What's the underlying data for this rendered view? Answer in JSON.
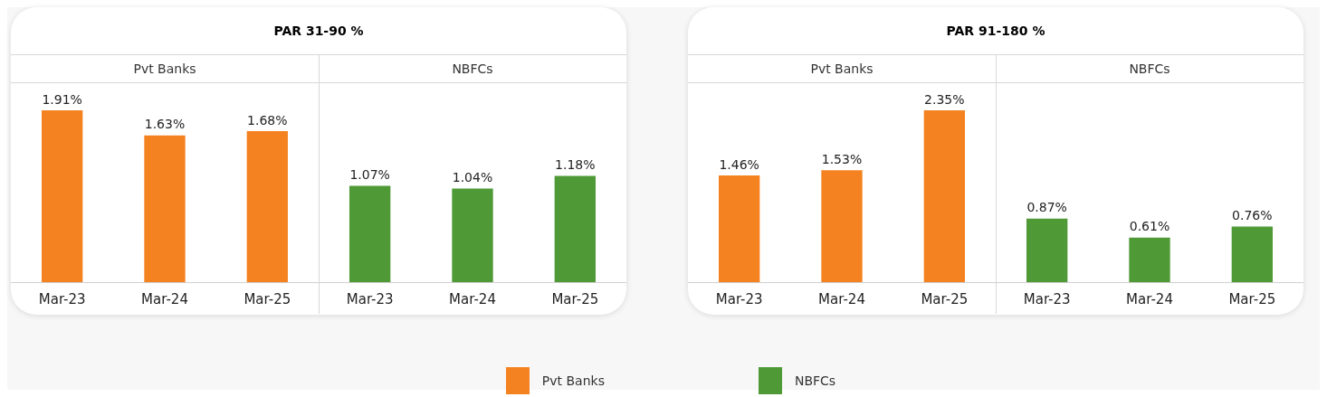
{
  "chart_data": [
    {
      "type": "bar",
      "title": "PAR 31-90 %",
      "categories": [
        "Mar-23",
        "Mar-24",
        "Mar-25",
        "Mar-23",
        "Mar-24",
        "Mar-25"
      ],
      "legend": "bottom",
      "series": [
        {
          "name": "Pvt Banks",
          "color": "#f58220",
          "values": [
            1.91,
            1.63,
            1.68,
            null,
            null,
            null
          ],
          "value_labels": [
            "1.91%",
            "1.63%",
            "1.68%",
            null,
            null,
            null
          ]
        },
        {
          "name": "NBFCs",
          "color": "#4f9a37",
          "values": [
            null,
            null,
            null,
            1.07,
            1.04,
            1.18
          ],
          "value_labels": [
            null,
            null,
            null,
            "1.07%",
            "1.04%",
            "1.18%"
          ]
        }
      ]
    },
    {
      "type": "bar",
      "title": "PAR 91-180 %",
      "categories": [
        "Mar-23",
        "Mar-24",
        "Mar-25",
        "Mar-23",
        "Mar-24",
        "Mar-25"
      ],
      "annotations": [
        "Pvt Banks",
        "NBFCs"
      ],
      "series": [
        {
          "color": "#f58220",
          "values": [
            1.46,
            1.53,
            2.35,
            null,
            null,
            null
          ],
          "value_labels": [
            "1.46%",
            "1.53%",
            "2.35%",
            null,
            null,
            null
          ]
        },
        {
          "color": "#4f9a37",
          "values": [
            null,
            null,
            null,
            0.87,
            0.61,
            0.76
          ],
          "value_labels": [
            null,
            null,
            null,
            "0.87%",
            "0.61%",
            "0.76%"
          ]
        }
      ]
    }
  ]
}
